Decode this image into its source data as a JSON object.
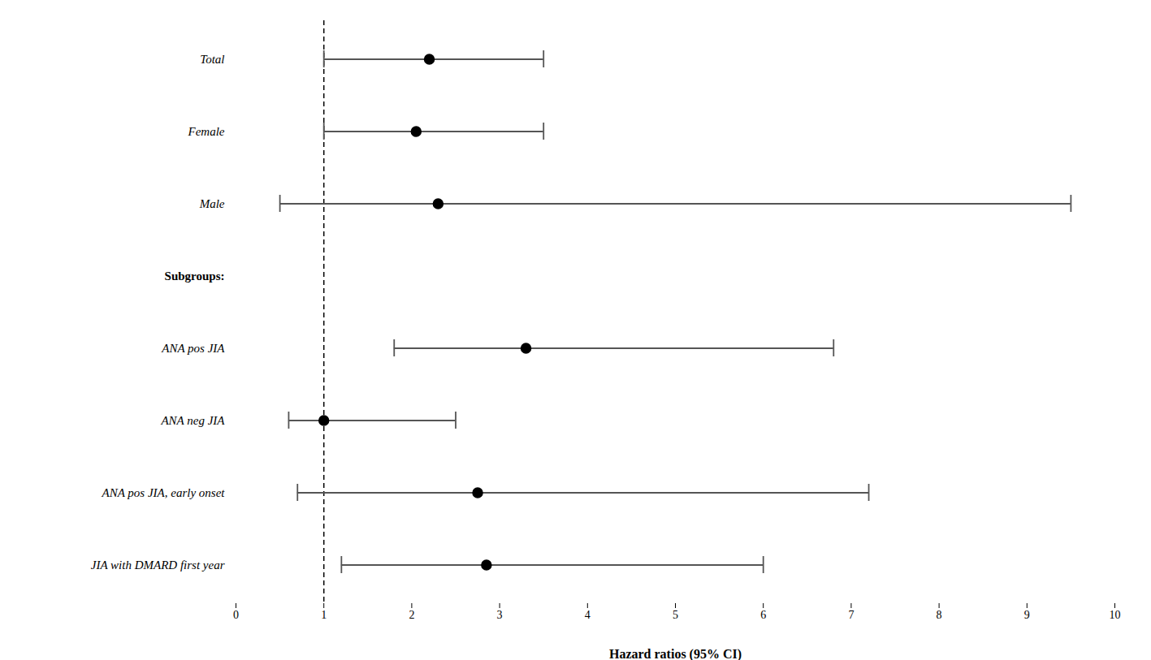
{
  "chart_data": {
    "type": "forest",
    "categories": [
      "Total",
      "Female",
      "Male",
      "Subgroups:",
      "ANA pos JIA",
      "ANA neg JIA",
      "ANA pos JIA, early onset",
      "JIA with DMARD first year"
    ],
    "values": [
      2.2,
      2.05,
      2.3,
      null,
      3.3,
      1.0,
      2.75,
      2.85
    ],
    "ci_low": [
      1.0,
      1.0,
      0.5,
      null,
      1.8,
      0.6,
      0.7,
      1.2
    ],
    "ci_high": [
      3.5,
      3.5,
      9.5,
      null,
      6.8,
      2.5,
      7.2,
      6.0
    ],
    "xlabel": "Hazard ratios (95% CI)",
    "xlim": [
      0,
      10
    ],
    "xticks": [
      0,
      1,
      2,
      3,
      4,
      5,
      6,
      7,
      8,
      9,
      10
    ],
    "vline": 1.0,
    "color": "#555555",
    "grid": false
  }
}
